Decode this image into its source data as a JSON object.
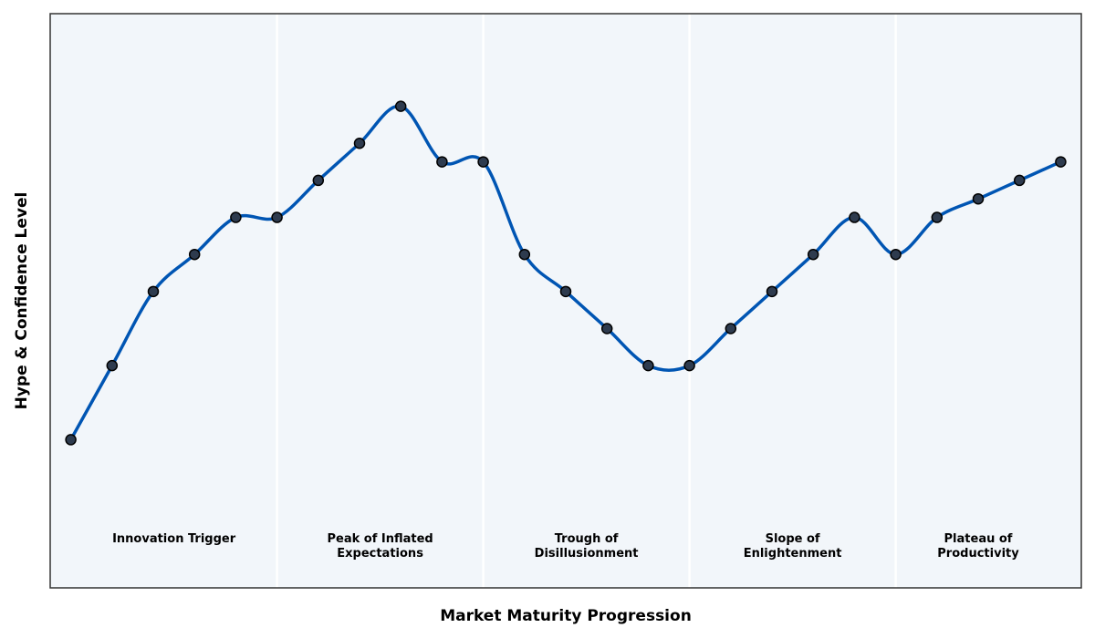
{
  "chart_data": {
    "type": "line",
    "xlabel": "Market Maturity Progression",
    "ylabel": "Hype & Confidence Level",
    "x": [
      0,
      1,
      2,
      3,
      4,
      5,
      6,
      7,
      8,
      9,
      10,
      11,
      12,
      13,
      14,
      15,
      16,
      17,
      18,
      19,
      20,
      21,
      22,
      23,
      24
    ],
    "values": [
      20,
      40,
      60,
      70,
      80,
      80,
      90,
      100,
      110,
      95,
      95,
      70,
      60,
      50,
      40,
      40,
      50,
      60,
      70,
      80,
      70,
      80,
      85,
      90,
      95
    ],
    "xlim": [
      -0.5,
      24.5
    ],
    "ylim": [
      -20,
      135
    ],
    "grid": false,
    "phases": [
      {
        "label": [
          "Innovation Trigger"
        ],
        "start": -0.5,
        "end": 5
      },
      {
        "label": [
          "Peak of Inflated",
          "Expectations"
        ],
        "start": 5,
        "end": 10
      },
      {
        "label": [
          "Trough of",
          "Disillusionment"
        ],
        "start": 10,
        "end": 15
      },
      {
        "label": [
          "Slope of",
          "Enlightenment"
        ],
        "start": 15,
        "end": 20
      },
      {
        "label": [
          "Plateau of",
          "Productivity"
        ],
        "start": 20,
        "end": 24.5
      }
    ],
    "colors": {
      "line": "#0055b3",
      "marker_fill": "#2e3b4e",
      "marker_edge": "#000000",
      "background": "#f2f6fa",
      "divider": "#ffffff"
    }
  }
}
